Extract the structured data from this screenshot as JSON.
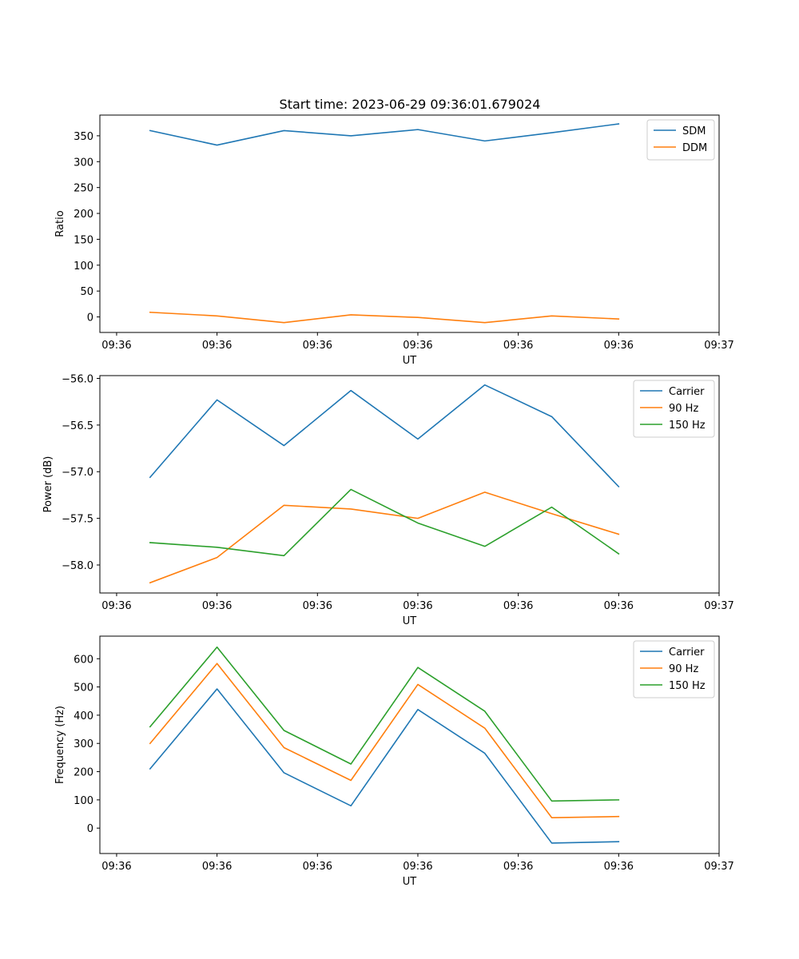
{
  "figure_title": "Start time: 2023-06-29 09:36:01.679024",
  "chart_data": [
    {
      "type": "line",
      "title": "Start time: 2023-06-29 09:36:01.679024",
      "xlabel": "UT",
      "ylabel": "Ratio",
      "x_tick_labels": [
        "09:36",
        "09:36",
        "09:36",
        "09:36",
        "09:36",
        "09:36",
        "09:37"
      ],
      "x_tick_positions": [
        -0.5,
        1.0,
        2.5,
        4.0,
        5.5,
        7.0,
        8.5
      ],
      "xlim": [
        -0.75,
        8.5
      ],
      "x": [
        0,
        1,
        2,
        3,
        4,
        5,
        6,
        7
      ],
      "ylim": [
        -30,
        390
      ],
      "yticks": [
        0,
        50,
        100,
        150,
        200,
        250,
        300,
        350
      ],
      "legend_position": "upper right",
      "series": [
        {
          "name": "SDM",
          "color": "#1f77b4",
          "values": [
            360,
            332,
            360,
            350,
            362,
            340,
            356,
            373
          ]
        },
        {
          "name": "DDM",
          "color": "#ff7f0e",
          "values": [
            9,
            2,
            -11,
            4,
            -1,
            -11,
            2,
            -4
          ]
        }
      ]
    },
    {
      "type": "line",
      "xlabel": "UT",
      "ylabel": "Power (dB)",
      "x_tick_labels": [
        "09:36",
        "09:36",
        "09:36",
        "09:36",
        "09:36",
        "09:36",
        "09:37"
      ],
      "x_tick_positions": [
        -0.5,
        1.0,
        2.5,
        4.0,
        5.5,
        7.0,
        8.5
      ],
      "xlim": [
        -0.75,
        8.5
      ],
      "x": [
        0,
        1,
        2,
        3,
        4,
        5,
        6,
        7
      ],
      "ylim": [
        -58.3,
        -55.97
      ],
      "yticks": [
        -58.0,
        -57.5,
        -57.0,
        -56.5,
        -56.0
      ],
      "ytick_labels": [
        "−58.0",
        "−57.5",
        "−57.0",
        "−56.5",
        "−56.0"
      ],
      "legend_position": "upper right",
      "series": [
        {
          "name": "Carrier",
          "color": "#1f77b4",
          "values": [
            -57.06,
            -56.23,
            -56.72,
            -56.13,
            -56.65,
            -56.07,
            -56.41,
            -57.16
          ]
        },
        {
          "name": "90 Hz",
          "color": "#ff7f0e",
          "values": [
            -58.19,
            -57.92,
            -57.36,
            -57.4,
            -57.5,
            -57.22,
            -57.45,
            -57.67
          ]
        },
        {
          "name": "150 Hz",
          "color": "#2ca02c",
          "values": [
            -57.76,
            -57.81,
            -57.9,
            -57.19,
            -57.55,
            -57.8,
            -57.38,
            -57.88
          ]
        }
      ]
    },
    {
      "type": "line",
      "xlabel": "UT",
      "ylabel": "Frequency (Hz)",
      "x_tick_labels": [
        "09:36",
        "09:36",
        "09:36",
        "09:36",
        "09:36",
        "09:36",
        "09:37"
      ],
      "x_tick_positions": [
        -0.5,
        1.0,
        2.5,
        4.0,
        5.5,
        7.0,
        8.5
      ],
      "xlim": [
        -0.75,
        8.5
      ],
      "x": [
        0,
        1,
        2,
        3,
        4,
        5,
        6,
        7
      ],
      "ylim": [
        -90,
        680
      ],
      "yticks": [
        0,
        100,
        200,
        300,
        400,
        500,
        600
      ],
      "legend_position": "upper right",
      "series": [
        {
          "name": "Carrier",
          "color": "#1f77b4",
          "values": [
            210,
            493,
            196,
            79,
            420,
            265,
            -53,
            -48
          ]
        },
        {
          "name": "90 Hz",
          "color": "#ff7f0e",
          "values": [
            300,
            583,
            285,
            169,
            509,
            354,
            37,
            41
          ]
        },
        {
          "name": "150 Hz",
          "color": "#2ca02c",
          "values": [
            359,
            641,
            346,
            227,
            569,
            414,
            96,
            100
          ]
        }
      ]
    }
  ]
}
